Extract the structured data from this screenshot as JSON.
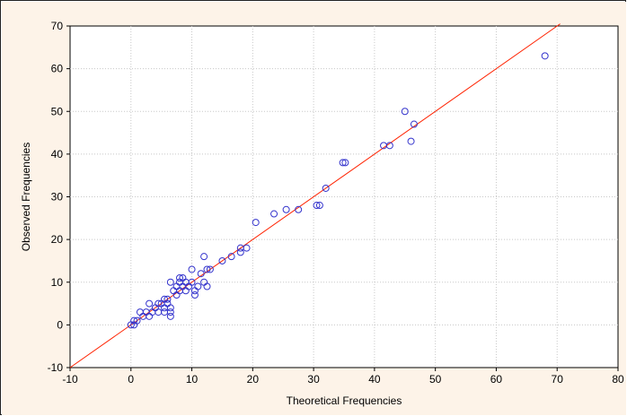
{
  "chart_data": {
    "type": "scatter",
    "title": "",
    "xlabel": "Theoretical Frequencies",
    "ylabel": "Observed Frequencies",
    "xlim": [
      -10,
      80
    ],
    "ylim": [
      -10,
      70
    ],
    "x_ticks": [
      -10,
      0,
      10,
      20,
      30,
      40,
      50,
      60,
      70,
      80
    ],
    "y_ticks": [
      -10,
      0,
      10,
      20,
      30,
      40,
      50,
      60,
      70
    ],
    "grid": true,
    "legend": "none",
    "colors": {
      "points": "#3333cc",
      "fit_line": "#ff2200",
      "plot_background": "#ffffff",
      "margin_background": "#fdf3e8",
      "grid": "#c8c8c8"
    },
    "fit_line": {
      "x": [
        -10,
        70.5
      ],
      "y": [
        -10,
        70.5
      ]
    },
    "series": [
      {
        "points": [
          [
            0,
            0
          ],
          [
            0.5,
            0
          ],
          [
            1,
            1
          ],
          [
            0.5,
            1
          ],
          [
            1.5,
            3
          ],
          [
            2,
            2
          ],
          [
            2.5,
            3
          ],
          [
            3,
            2
          ],
          [
            3,
            5
          ],
          [
            3.5,
            3
          ],
          [
            4,
            4
          ],
          [
            4.5,
            5
          ],
          [
            4.5,
            3
          ],
          [
            5,
            5
          ],
          [
            5.5,
            6
          ],
          [
            5.5,
            4
          ],
          [
            5.5,
            3
          ],
          [
            6,
            6
          ],
          [
            6,
            5
          ],
          [
            6.5,
            2
          ],
          [
            6.5,
            3
          ],
          [
            6.5,
            4
          ],
          [
            6.5,
            10
          ],
          [
            7,
            8
          ],
          [
            7.5,
            7
          ],
          [
            7.5,
            9
          ],
          [
            8,
            8
          ],
          [
            8,
            11
          ],
          [
            8,
            10
          ],
          [
            8.5,
            9
          ],
          [
            8.5,
            11
          ],
          [
            9,
            8
          ],
          [
            9,
            10
          ],
          [
            9.5,
            9
          ],
          [
            10,
            13
          ],
          [
            10,
            10
          ],
          [
            10.5,
            7
          ],
          [
            10.5,
            8
          ],
          [
            11,
            9
          ],
          [
            11.5,
            12
          ],
          [
            12,
            16
          ],
          [
            12,
            10
          ],
          [
            12.5,
            9
          ],
          [
            12.5,
            13
          ],
          [
            13,
            13
          ],
          [
            15,
            15
          ],
          [
            16.5,
            16
          ],
          [
            18,
            17
          ],
          [
            18,
            18
          ],
          [
            19,
            18
          ],
          [
            20.5,
            24
          ],
          [
            23.5,
            26
          ],
          [
            25.5,
            27
          ],
          [
            27.5,
            27
          ],
          [
            30.5,
            28
          ],
          [
            31,
            28
          ],
          [
            32,
            32
          ],
          [
            34.8,
            38
          ],
          [
            35.2,
            38
          ],
          [
            41.5,
            42
          ],
          [
            42.5,
            42
          ],
          [
            45,
            50
          ],
          [
            46,
            43
          ],
          [
            46.5,
            47
          ],
          [
            68,
            63
          ]
        ]
      }
    ]
  }
}
